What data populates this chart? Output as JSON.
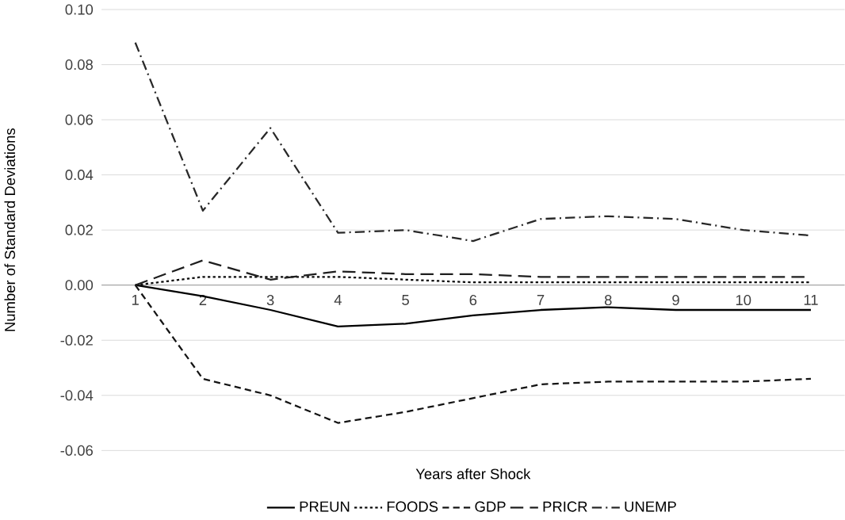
{
  "chart_data": {
    "type": "line",
    "xlabel": "Years after Shock",
    "ylabel": "Number of Standard Deviations",
    "categories": [
      "1",
      "2",
      "3",
      "4",
      "5",
      "6",
      "7",
      "8",
      "9",
      "10",
      "11"
    ],
    "series": [
      {
        "name": "PREUN",
        "color": "#000000",
        "line_style": "solid",
        "values": [
          0,
          -0.004,
          -0.009,
          -0.015,
          -0.014,
          -0.011,
          -0.009,
          -0.008,
          -0.009,
          -0.009,
          -0.009
        ]
      },
      {
        "name": "FOODS",
        "color": "#0a0a0a",
        "line_style": "dotted",
        "values": [
          0,
          0.003,
          0.003,
          0.003,
          0.002,
          0.001,
          0.001,
          0.001,
          0.001,
          0.001,
          0.001
        ]
      },
      {
        "name": "GDP",
        "color": "#141414",
        "line_style": "dashed",
        "values": [
          0,
          -0.034,
          -0.04,
          -0.05,
          -0.046,
          -0.041,
          -0.036,
          -0.035,
          -0.035,
          -0.035,
          -0.034
        ]
      },
      {
        "name": "PRICR",
        "color": "#1e1e1e",
        "line_style": "longdashed",
        "values": [
          0,
          0.009,
          0.002,
          0.005,
          0.004,
          0.004,
          0.003,
          0.003,
          0.003,
          0.003,
          0.003
        ]
      },
      {
        "name": "UNEMP",
        "color": "#282828",
        "line_style": "dashdot",
        "values": [
          0.088,
          0.027,
          0.057,
          0.019,
          0.02,
          0.016,
          0.024,
          0.025,
          0.024,
          0.02,
          0.018
        ]
      }
    ],
    "ylim": [
      -0.06,
      0.1
    ],
    "yticks": [
      {
        "value": -0.06,
        "label": "-0.06"
      },
      {
        "value": -0.04,
        "label": "-0.04"
      },
      {
        "value": -0.02,
        "label": "-0.02"
      },
      {
        "value": 0,
        "label": "0.00"
      },
      {
        "value": 0.02,
        "label": "0.02"
      },
      {
        "value": 0.04,
        "label": "0.04"
      },
      {
        "value": 0.06,
        "label": "0.06"
      },
      {
        "value": 0.08,
        "label": "0.08"
      },
      {
        "value": 0.1,
        "label": "0.10"
      }
    ],
    "grid": "y",
    "legend": "bottom",
    "marker": "none"
  }
}
